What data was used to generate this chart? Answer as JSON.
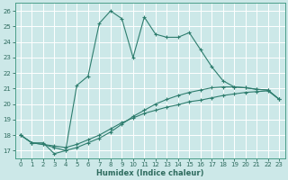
{
  "xlabel": "Humidex (Indice chaleur)",
  "bg_color": "#cce8e8",
  "grid_color": "#ffffff",
  "line_color": "#2e7d6e",
  "xlim": [
    -0.5,
    23.5
  ],
  "ylim": [
    16.5,
    26.5
  ],
  "yticks": [
    17,
    18,
    19,
    20,
    21,
    22,
    23,
    24,
    25,
    26
  ],
  "xticks": [
    0,
    1,
    2,
    3,
    4,
    5,
    6,
    7,
    8,
    9,
    10,
    11,
    12,
    13,
    14,
    15,
    16,
    17,
    18,
    19,
    20,
    21,
    22,
    23
  ],
  "line1_x": [
    0,
    1,
    2,
    3,
    4,
    5,
    6,
    7,
    8,
    9,
    10,
    11,
    12,
    13,
    14,
    15,
    16,
    17,
    18,
    19,
    20,
    21,
    22,
    23
  ],
  "line1_y": [
    18.0,
    17.5,
    17.4,
    17.3,
    17.2,
    17.4,
    17.7,
    18.0,
    18.4,
    18.8,
    19.1,
    19.4,
    19.6,
    19.8,
    19.95,
    20.15,
    20.25,
    20.4,
    20.55,
    20.65,
    20.75,
    20.8,
    20.85,
    20.3
  ],
  "line2_x": [
    0,
    1,
    2,
    3,
    4,
    5,
    6,
    7,
    8,
    9,
    10,
    11,
    12,
    13,
    14,
    15,
    16,
    17,
    18,
    19,
    20,
    21,
    22,
    23
  ],
  "line2_y": [
    18.0,
    17.5,
    17.4,
    17.2,
    17.0,
    17.2,
    17.5,
    17.8,
    18.2,
    18.7,
    19.2,
    19.6,
    20.0,
    20.3,
    20.55,
    20.75,
    20.9,
    21.05,
    21.1,
    21.1,
    21.05,
    20.95,
    20.9,
    20.3
  ],
  "line3_x": [
    0,
    1,
    2,
    3,
    4,
    5,
    6,
    7,
    8,
    9,
    10,
    11,
    12,
    13,
    14,
    15,
    16,
    17,
    18,
    19,
    20,
    21,
    22,
    23
  ],
  "line3_y": [
    18.0,
    17.5,
    17.5,
    16.8,
    17.0,
    21.2,
    21.8,
    25.2,
    26.0,
    25.5,
    23.0,
    25.6,
    24.5,
    24.3,
    24.3,
    24.6,
    23.5,
    22.4,
    21.5,
    21.1,
    21.05,
    20.95,
    20.9,
    20.3
  ]
}
